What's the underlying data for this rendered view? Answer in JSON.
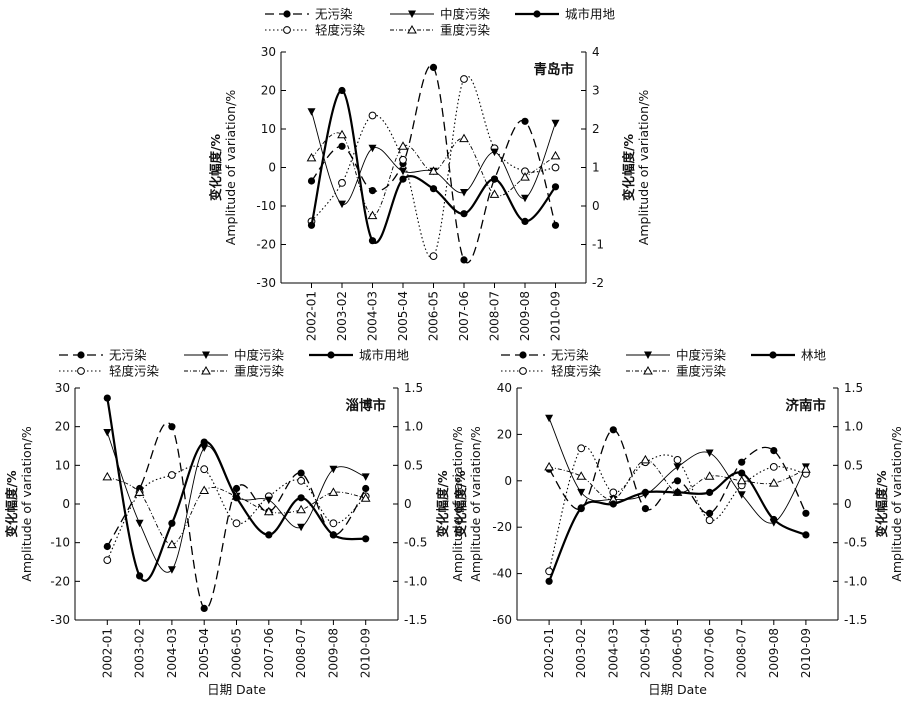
{
  "legend_labels": {
    "none": "无污染",
    "light": "轻度污染",
    "moderate": "中度污染",
    "heavy": "重度污染",
    "urban": "城市用地",
    "forest": "林地"
  },
  "ylabel_zh": "变化幅度",
  "ylabel_en": "Amplitude of variation/%",
  "xlabel": "日期 Date",
  "chart_data": [
    {
      "type": "line",
      "title": "青岛市",
      "categories": [
        "2002-01",
        "2003-02",
        "2004-03",
        "2005-04",
        "2006-05",
        "2007-06",
        "2008-07",
        "2009-08",
        "2010-09"
      ],
      "ylim_left": [
        -30,
        30
      ],
      "yticks_left": [
        -30,
        -20,
        -10,
        0,
        10,
        20,
        30
      ],
      "ylim_right": [
        -2,
        4
      ],
      "yticks_right": [
        -2,
        -1,
        0,
        1,
        2,
        3,
        4
      ],
      "series": [
        {
          "key": "none",
          "axis": "left",
          "values": [
            -3.5,
            5.5,
            -6,
            1,
            26,
            -24,
            -3,
            12,
            -15
          ]
        },
        {
          "key": "light",
          "axis": "left",
          "values": [
            -14,
            -4,
            13.5,
            2,
            -23,
            23,
            5,
            -1,
            0
          ]
        },
        {
          "key": "moderate",
          "axis": "left",
          "values": [
            14.5,
            -9.5,
            5,
            -1,
            -1,
            -6.5,
            4,
            -8,
            11.5
          ]
        },
        {
          "key": "heavy",
          "axis": "left",
          "values": [
            2.5,
            8.5,
            -12.5,
            5.5,
            -1,
            7.5,
            -7,
            -2.5,
            3
          ]
        },
        {
          "key": "urban",
          "axis": "right",
          "values": [
            -0.5,
            3,
            -0.9,
            0.7,
            0.45,
            -0.2,
            0.7,
            -0.4,
            0.5
          ]
        }
      ]
    },
    {
      "type": "line",
      "title": "淄博市",
      "categories": [
        "2002-01",
        "2003-02",
        "2004-03",
        "2005-04",
        "2006-05",
        "2007-06",
        "2008-07",
        "2009-08",
        "2010-09"
      ],
      "ylim_left": [
        -30,
        30
      ],
      "yticks_left": [
        -30,
        -20,
        -10,
        0,
        10,
        20,
        30
      ],
      "ylim_right": [
        -1.5,
        1.5
      ],
      "yticks_right": [
        -1.5,
        -1.0,
        -0.5,
        0,
        0.5,
        1.0,
        1.5
      ],
      "series": [
        {
          "key": "none",
          "axis": "left",
          "values": [
            -11,
            4,
            20,
            -27,
            4,
            -2,
            8,
            -8,
            4
          ]
        },
        {
          "key": "light",
          "axis": "left",
          "values": [
            -14.5,
            3,
            7.5,
            9,
            -5,
            2,
            6,
            -5,
            2
          ]
        },
        {
          "key": "moderate",
          "axis": "left",
          "values": [
            18.5,
            -5,
            -17,
            14.5,
            2,
            1,
            -6,
            9,
            7
          ]
        },
        {
          "key": "heavy",
          "axis": "left",
          "values": [
            7,
            3,
            -10.5,
            3.5,
            2,
            -2,
            -1.5,
            3,
            1.5
          ]
        },
        {
          "key": "urban",
          "axis": "right",
          "values": [
            1.37,
            -0.93,
            -0.25,
            0.8,
            0.08,
            -0.4,
            0.08,
            -0.4,
            -0.45
          ]
        }
      ]
    },
    {
      "type": "line",
      "title": "济南市",
      "categories": [
        "2002-01",
        "2003-02",
        "2004-03",
        "2005-04",
        "2006-05",
        "2007-06",
        "2008-07",
        "2009-08",
        "2010-09"
      ],
      "ylim_left": [
        -60,
        40
      ],
      "yticks_left": [
        -60,
        -40,
        -20,
        0,
        20,
        40
      ],
      "ylim_right": [
        -1.5,
        1.5
      ],
      "yticks_right": [
        -1.5,
        -1.0,
        -0.5,
        0,
        0.5,
        1.0,
        1.5
      ],
      "series": [
        {
          "key": "none",
          "axis": "left",
          "values": [
            5,
            -12,
            22,
            -12,
            0,
            -14,
            8,
            13,
            -14
          ]
        },
        {
          "key": "light",
          "axis": "left",
          "values": [
            -39,
            14,
            -5,
            8,
            9,
            -17,
            -2,
            6,
            3
          ]
        },
        {
          "key": "moderate",
          "axis": "left",
          "values": [
            27,
            -5,
            -8,
            -6,
            6,
            12,
            -6,
            -18,
            6
          ]
        },
        {
          "key": "heavy",
          "axis": "left",
          "values": [
            6,
            2,
            -8,
            9,
            -5,
            2,
            0,
            -1,
            5
          ]
        },
        {
          "key": "forest",
          "axis": "right",
          "values": [
            -1.0,
            -0.05,
            0.0,
            0.15,
            0.15,
            0.15,
            0.4,
            -0.2,
            -0.4
          ]
        }
      ]
    }
  ]
}
